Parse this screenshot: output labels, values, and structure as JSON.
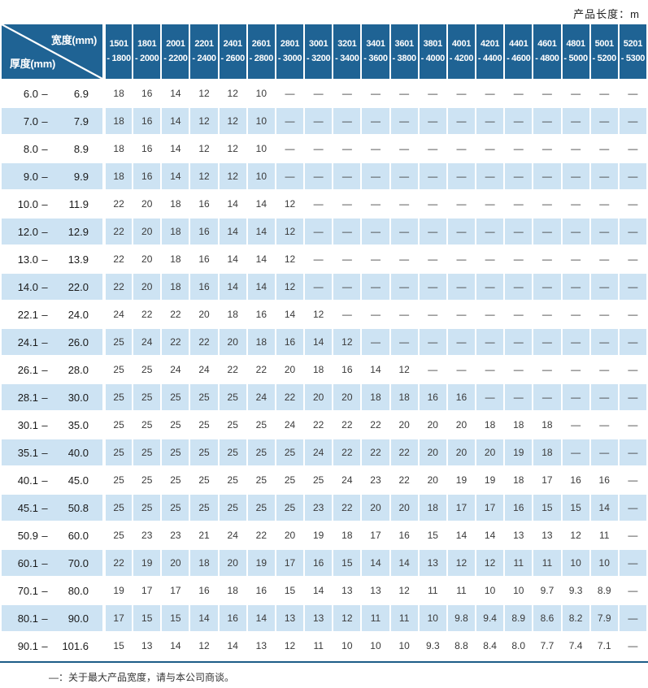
{
  "page": {
    "length_note": "产品长度：m",
    "footnote": "—：关于最大产品宽度，请与本公司商谈。"
  },
  "colors": {
    "header_bg": "#1f6394",
    "row_alt_bg": "#cde3f3",
    "rule": "#1d5c87"
  },
  "table": {
    "corner": {
      "width_label": "宽度(mm)",
      "thickness_label": "厚度(mm)"
    },
    "range_dash": "–",
    "width_columns": [
      {
        "line1": "1501",
        "line2": "- 1800"
      },
      {
        "line1": "1801",
        "line2": "- 2000"
      },
      {
        "line1": "2001",
        "line2": "- 2200"
      },
      {
        "line1": "2201",
        "line2": "- 2400"
      },
      {
        "line1": "2401",
        "line2": "- 2600"
      },
      {
        "line1": "2601",
        "line2": "- 2800"
      },
      {
        "line1": "2801",
        "line2": "- 3000"
      },
      {
        "line1": "3001",
        "line2": "- 3200"
      },
      {
        "line1": "3201",
        "line2": "- 3400"
      },
      {
        "line1": "3401",
        "line2": "- 3600"
      },
      {
        "line1": "3601",
        "line2": "- 3800"
      },
      {
        "line1": "3801",
        "line2": "- 4000"
      },
      {
        "line1": "4001",
        "line2": "- 4200"
      },
      {
        "line1": "4201",
        "line2": "- 4400"
      },
      {
        "line1": "4401",
        "line2": "- 4600"
      },
      {
        "line1": "4601",
        "line2": "- 4800"
      },
      {
        "line1": "4801",
        "line2": "- 5000"
      },
      {
        "line1": "5001",
        "line2": "- 5200"
      },
      {
        "line1": "5201",
        "line2": "- 5300"
      }
    ],
    "rows": [
      {
        "thickness": {
          "min": "6.0",
          "max": "6.9"
        },
        "values": [
          "18",
          "16",
          "14",
          "12",
          "12",
          "10",
          "—",
          "—",
          "—",
          "—",
          "—",
          "—",
          "—",
          "—",
          "—",
          "—",
          "—",
          "—",
          "—"
        ]
      },
      {
        "thickness": {
          "min": "7.0",
          "max": "7.9"
        },
        "values": [
          "18",
          "16",
          "14",
          "12",
          "12",
          "10",
          "—",
          "—",
          "—",
          "—",
          "—",
          "—",
          "—",
          "—",
          "—",
          "—",
          "—",
          "—",
          "—"
        ]
      },
      {
        "thickness": {
          "min": "8.0",
          "max": "8.9"
        },
        "values": [
          "18",
          "16",
          "14",
          "12",
          "12",
          "10",
          "—",
          "—",
          "—",
          "—",
          "—",
          "—",
          "—",
          "—",
          "—",
          "—",
          "—",
          "—",
          "—"
        ]
      },
      {
        "thickness": {
          "min": "9.0",
          "max": "9.9"
        },
        "values": [
          "18",
          "16",
          "14",
          "12",
          "12",
          "10",
          "—",
          "—",
          "—",
          "—",
          "—",
          "—",
          "—",
          "—",
          "—",
          "—",
          "—",
          "—",
          "—"
        ]
      },
      {
        "thickness": {
          "min": "10.0",
          "max": "11.9"
        },
        "values": [
          "22",
          "20",
          "18",
          "16",
          "14",
          "14",
          "12",
          "—",
          "—",
          "—",
          "—",
          "—",
          "—",
          "—",
          "—",
          "—",
          "—",
          "—",
          "—"
        ]
      },
      {
        "thickness": {
          "min": "12.0",
          "max": "12.9"
        },
        "values": [
          "22",
          "20",
          "18",
          "16",
          "14",
          "14",
          "12",
          "—",
          "—",
          "—",
          "—",
          "—",
          "—",
          "—",
          "—",
          "—",
          "—",
          "—",
          "—"
        ]
      },
      {
        "thickness": {
          "min": "13.0",
          "max": "13.9"
        },
        "values": [
          "22",
          "20",
          "18",
          "16",
          "14",
          "14",
          "12",
          "—",
          "—",
          "—",
          "—",
          "—",
          "—",
          "—",
          "—",
          "—",
          "—",
          "—",
          "—"
        ]
      },
      {
        "thickness": {
          "min": "14.0",
          "max": "22.0"
        },
        "values": [
          "22",
          "20",
          "18",
          "16",
          "14",
          "14",
          "12",
          "—",
          "—",
          "—",
          "—",
          "—",
          "—",
          "—",
          "—",
          "—",
          "—",
          "—",
          "—"
        ]
      },
      {
        "thickness": {
          "min": "22.1",
          "max": "24.0"
        },
        "values": [
          "24",
          "22",
          "22",
          "20",
          "18",
          "16",
          "14",
          "12",
          "—",
          "—",
          "—",
          "—",
          "—",
          "—",
          "—",
          "—",
          "—",
          "—",
          "—"
        ]
      },
      {
        "thickness": {
          "min": "24.1",
          "max": "26.0"
        },
        "values": [
          "25",
          "24",
          "22",
          "22",
          "20",
          "18",
          "16",
          "14",
          "12",
          "—",
          "—",
          "—",
          "—",
          "—",
          "—",
          "—",
          "—",
          "—",
          "—"
        ]
      },
      {
        "thickness": {
          "min": "26.1",
          "max": "28.0"
        },
        "values": [
          "25",
          "25",
          "24",
          "24",
          "22",
          "22",
          "20",
          "18",
          "16",
          "14",
          "12",
          "—",
          "—",
          "—",
          "—",
          "—",
          "—",
          "—",
          "—"
        ]
      },
      {
        "thickness": {
          "min": "28.1",
          "max": "30.0"
        },
        "values": [
          "25",
          "25",
          "25",
          "25",
          "25",
          "24",
          "22",
          "20",
          "20",
          "18",
          "18",
          "16",
          "16",
          "—",
          "—",
          "—",
          "—",
          "—",
          "—"
        ]
      },
      {
        "thickness": {
          "min": "30.1",
          "max": "35.0"
        },
        "values": [
          "25",
          "25",
          "25",
          "25",
          "25",
          "25",
          "24",
          "22",
          "22",
          "22",
          "20",
          "20",
          "20",
          "18",
          "18",
          "18",
          "—",
          "—",
          "—"
        ]
      },
      {
        "thickness": {
          "min": "35.1",
          "max": "40.0"
        },
        "values": [
          "25",
          "25",
          "25",
          "25",
          "25",
          "25",
          "25",
          "24",
          "22",
          "22",
          "22",
          "20",
          "20",
          "20",
          "19",
          "18",
          "—",
          "—",
          "—"
        ]
      },
      {
        "thickness": {
          "min": "40.1",
          "max": "45.0"
        },
        "values": [
          "25",
          "25",
          "25",
          "25",
          "25",
          "25",
          "25",
          "25",
          "24",
          "23",
          "22",
          "20",
          "19",
          "19",
          "18",
          "17",
          "16",
          "16",
          "—"
        ]
      },
      {
        "thickness": {
          "min": "45.1",
          "max": "50.8"
        },
        "values": [
          "25",
          "25",
          "25",
          "25",
          "25",
          "25",
          "25",
          "23",
          "22",
          "20",
          "20",
          "18",
          "17",
          "17",
          "16",
          "15",
          "15",
          "14",
          "—"
        ]
      },
      {
        "thickness": {
          "min": "50.9",
          "max": "60.0"
        },
        "values": [
          "25",
          "23",
          "23",
          "21",
          "24",
          "22",
          "20",
          "19",
          "18",
          "17",
          "16",
          "15",
          "14",
          "14",
          "13",
          "13",
          "12",
          "11",
          "—"
        ]
      },
      {
        "thickness": {
          "min": "60.1",
          "max": "70.0"
        },
        "values": [
          "22",
          "19",
          "20",
          "18",
          "20",
          "19",
          "17",
          "16",
          "15",
          "14",
          "14",
          "13",
          "12",
          "12",
          "11",
          "11",
          "10",
          "10",
          "—"
        ]
      },
      {
        "thickness": {
          "min": "70.1",
          "max": "80.0"
        },
        "values": [
          "19",
          "17",
          "17",
          "16",
          "18",
          "16",
          "15",
          "14",
          "13",
          "13",
          "12",
          "11",
          "11",
          "10",
          "10",
          "9.7",
          "9.3",
          "8.9",
          "—"
        ]
      },
      {
        "thickness": {
          "min": "80.1",
          "max": "90.0"
        },
        "values": [
          "17",
          "15",
          "15",
          "14",
          "16",
          "14",
          "13",
          "13",
          "12",
          "11",
          "11",
          "10",
          "9.8",
          "9.4",
          "8.9",
          "8.6",
          "8.2",
          "7.9",
          "—"
        ]
      },
      {
        "thickness": {
          "min": "90.1",
          "max": "101.6"
        },
        "values": [
          "15",
          "13",
          "14",
          "12",
          "14",
          "13",
          "12",
          "11",
          "10",
          "10",
          "10",
          "9.3",
          "8.8",
          "8.4",
          "8.0",
          "7.7",
          "7.4",
          "7.1",
          "—"
        ]
      }
    ]
  }
}
